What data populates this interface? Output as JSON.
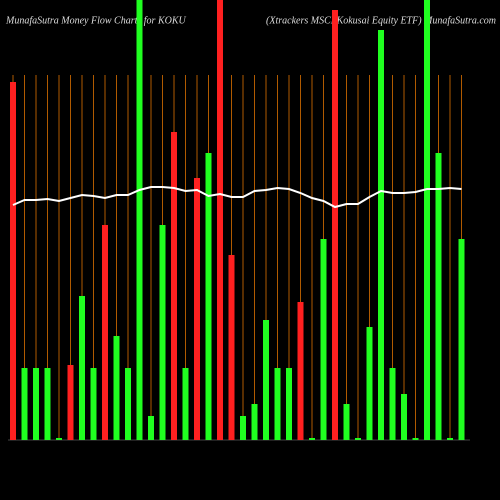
{
  "chart_data": {
    "type": "bar",
    "title": "MunafaSutra  Money Flow  Charts for KOKU",
    "subtitle": "(Xtrackers MSCI Kokusai  Equity ETF) MunafaSutra.com",
    "ylim": [
      0,
      440
    ],
    "values": [
      358,
      72,
      72,
      72,
      2,
      75,
      144,
      72,
      215,
      104,
      72,
      440,
      24,
      215,
      308,
      72,
      262,
      287,
      440,
      185,
      24,
      36,
      120,
      72,
      72,
      138,
      2,
      201,
      430,
      36,
      2,
      113,
      410,
      72,
      46,
      2,
      440,
      287,
      2,
      201
    ],
    "colors": [
      "#ff2020",
      "#20ff20",
      "#20ff20",
      "#20ff20",
      "#20ff20",
      "#ff2020",
      "#20ff20",
      "#20ff20",
      "#ff2020",
      "#20ff20",
      "#20ff20",
      "#20ff20",
      "#20ff20",
      "#20ff20",
      "#ff2020",
      "#20ff20",
      "#ff2020",
      "#20ff20",
      "#ff2020",
      "#ff2020",
      "#20ff20",
      "#20ff20",
      "#20ff20",
      "#20ff20",
      "#20ff20",
      "#ff2020",
      "#20ff20",
      "#20ff20",
      "#ff2020",
      "#20ff20",
      "#20ff20",
      "#20ff20",
      "#20ff20",
      "#20ff20",
      "#20ff20",
      "#20ff20",
      "#20ff20",
      "#20ff20",
      "#20ff20",
      "#20ff20"
    ],
    "line": {
      "color": "#ffffff",
      "values": [
        235,
        240,
        240,
        241,
        239,
        242,
        245,
        244,
        242,
        245,
        245,
        250,
        253,
        253,
        252,
        249,
        250,
        244,
        246,
        243,
        243,
        249,
        250,
        252,
        251,
        247,
        242,
        239,
        233,
        236,
        236,
        243,
        249,
        247,
        247,
        248,
        251,
        251,
        252,
        251
      ]
    }
  }
}
